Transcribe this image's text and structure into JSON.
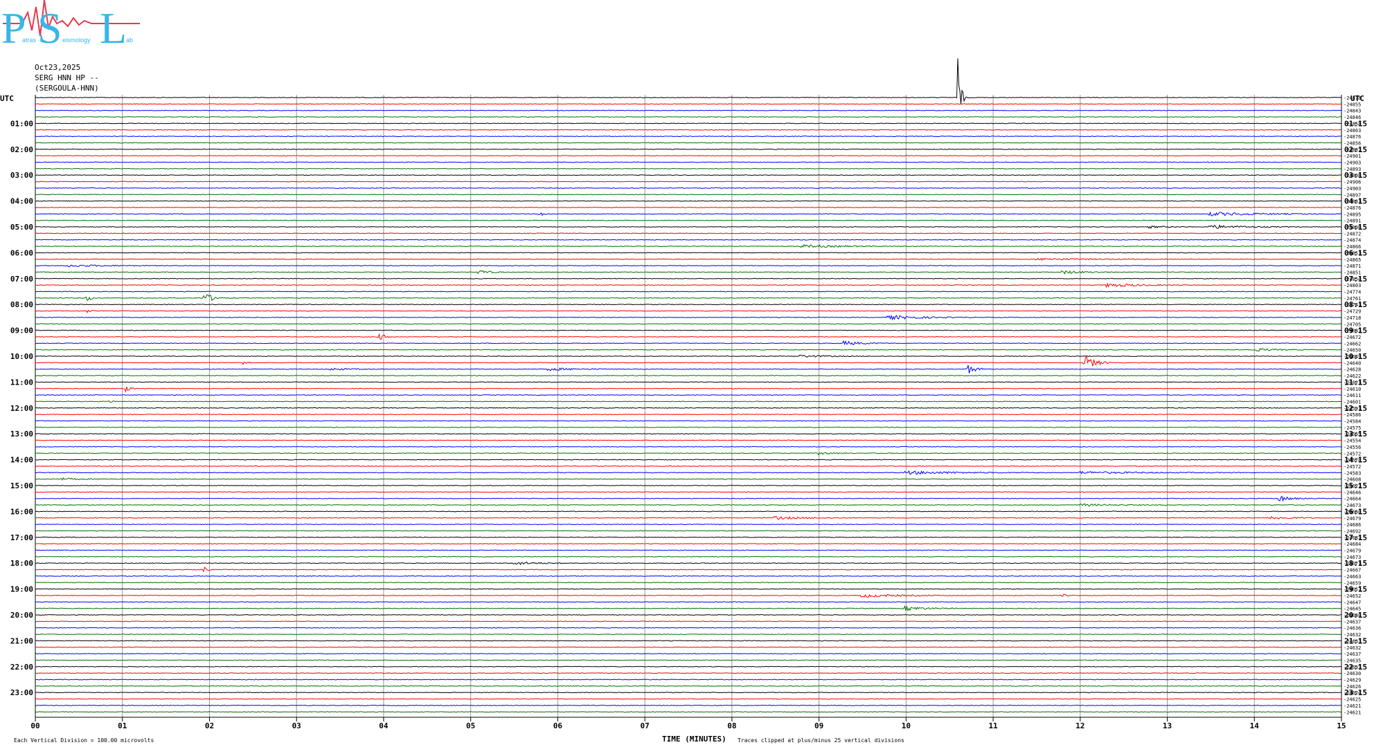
{
  "logo": {
    "text": "PSL",
    "subtext_left": "atras",
    "subtext_mid": "eismology",
    "subtext_right": "ab",
    "color_main": "#38b6e8",
    "color_accent": "#e8384f"
  },
  "header": {
    "date": "Oct23,2025",
    "station": "SERG HNN HP --",
    "station_long": "(SERGOULA-HNN)"
  },
  "colors": {
    "black": "#000000",
    "red": "#ff0000",
    "blue": "#0000ff",
    "green": "#007000",
    "grid": "#999999"
  },
  "chart_data": {
    "type": "line",
    "title": "",
    "xlabel": "TIME (MINUTES)",
    "ylabel": "",
    "left_axis_label": "UTC",
    "right_axis_label": "UTC",
    "x_ticks": [
      "00",
      "01",
      "02",
      "03",
      "04",
      "05",
      "06",
      "07",
      "08",
      "09",
      "10",
      "11",
      "12",
      "13",
      "14",
      "15"
    ],
    "xlim": [
      0,
      15
    ],
    "left_hour_labels": [
      "01:00",
      "02:00",
      "03:00",
      "04:00",
      "05:00",
      "06:00",
      "07:00",
      "08:00",
      "09:00",
      "10:00",
      "11:00",
      "12:00",
      "13:00",
      "14:00",
      "15:00",
      "16:00",
      "17:00",
      "18:00",
      "19:00",
      "20:00",
      "21:00",
      "22:00",
      "23:00"
    ],
    "right_hour_labels": [
      "01:15",
      "02:15",
      "03:15",
      "04:15",
      "05:15",
      "06:15",
      "07:15",
      "08:15",
      "09:15",
      "10:15",
      "11:15",
      "12:15",
      "13:15",
      "14:15",
      "15:15",
      "16:15",
      "17:15",
      "18:15",
      "19:15",
      "20:15",
      "21:15",
      "22:15",
      "23:15"
    ],
    "trace_color_cycle": [
      "black",
      "red",
      "blue",
      "green"
    ],
    "trace_count": 96,
    "trace_offsets": [
      "-24878",
      "-24855",
      "-24843",
      "-24846",
      "-24858",
      "-24863",
      "-24876",
      "-24856",
      "-24887",
      "-24901",
      "-24903",
      "-24893",
      "-24908",
      "-24906",
      "-24903",
      "-24897",
      "-24881",
      "-24876",
      "-24895",
      "-24891",
      "-24908",
      "-24872",
      "-24874",
      "-24866",
      "-24851",
      "-24865",
      "-24871",
      "-24851",
      "-24854",
      "-24803",
      "-24774",
      "-24761",
      "-24741",
      "-24729",
      "-24718",
      "-24705",
      "-24687",
      "-24672",
      "-24662",
      "-24650",
      "-24649",
      "-24640",
      "-24628",
      "-24622",
      "-24621",
      "-24610",
      "-24611",
      "-24601",
      "-24591",
      "-24586",
      "-24584",
      "-24575",
      "-24565",
      "-24554",
      "-24556",
      "-24572",
      "-24578",
      "-24572",
      "-24583",
      "-24608",
      "-24627",
      "-24646",
      "-24664",
      "-24673",
      "-24680",
      "-24679",
      "-24686",
      "-24692",
      "-24687",
      "-24684",
      "-24679",
      "-24673",
      "-24671",
      "-24667",
      "-24663",
      "-24659",
      "-24657",
      "-24652",
      "-24647",
      "-24645",
      "-24640",
      "-24637",
      "-24636",
      "-24632",
      "-24633",
      "-24632",
      "-24637",
      "-24635",
      "-24633",
      "-24630",
      "-24629",
      "-24626",
      "-24624",
      "-24625",
      "-24621",
      "-24621"
    ],
    "events": [
      {
        "trace": 0,
        "minute": 10.6,
        "amp": 5.0,
        "dur": 0.1
      },
      {
        "trace": 18,
        "minute": 5.8,
        "amp": 0.8,
        "dur": 0.1
      },
      {
        "trace": 18,
        "minute": 13.5,
        "amp": 0.5,
        "dur": 1.5
      },
      {
        "trace": 20,
        "minute": 13.5,
        "amp": 0.5,
        "dur": 1.0
      },
      {
        "trace": 20,
        "minute": 12.8,
        "amp": 0.3,
        "dur": 0.5
      },
      {
        "trace": 23,
        "minute": 8.8,
        "amp": 0.4,
        "dur": 1.2
      },
      {
        "trace": 25,
        "minute": 11.5,
        "amp": 0.25,
        "dur": 1.5
      },
      {
        "trace": 26,
        "minute": 0.4,
        "amp": 0.3,
        "dur": 1.0
      },
      {
        "trace": 27,
        "minute": 5.1,
        "amp": 0.6,
        "dur": 0.3
      },
      {
        "trace": 27,
        "minute": 11.8,
        "amp": 0.4,
        "dur": 0.8
      },
      {
        "trace": 29,
        "minute": 12.3,
        "amp": 0.5,
        "dur": 1.0
      },
      {
        "trace": 31,
        "minute": 1.95,
        "amp": 1.6,
        "dur": 0.2
      },
      {
        "trace": 31,
        "minute": 0.6,
        "amp": 0.8,
        "dur": 0.1
      },
      {
        "trace": 33,
        "minute": 0.6,
        "amp": 0.4,
        "dur": 0.1
      },
      {
        "trace": 34,
        "minute": 9.8,
        "amp": 0.6,
        "dur": 1.0
      },
      {
        "trace": 37,
        "minute": 3.95,
        "amp": 0.9,
        "dur": 0.2
      },
      {
        "trace": 38,
        "minute": 9.3,
        "amp": 0.6,
        "dur": 0.5
      },
      {
        "trace": 39,
        "minute": 14.0,
        "amp": 0.4,
        "dur": 0.6
      },
      {
        "trace": 40,
        "minute": 8.8,
        "amp": 0.3,
        "dur": 0.8
      },
      {
        "trace": 41,
        "minute": 2.4,
        "amp": 0.6,
        "dur": 0.1
      },
      {
        "trace": 41,
        "minute": 12.05,
        "amp": 2.2,
        "dur": 0.3
      },
      {
        "trace": 42,
        "minute": 10.7,
        "amp": 1.6,
        "dur": 0.2
      },
      {
        "trace": 42,
        "minute": 5.9,
        "amp": 0.4,
        "dur": 0.8
      },
      {
        "trace": 42,
        "minute": 3.4,
        "amp": 0.3,
        "dur": 0.5
      },
      {
        "trace": 45,
        "minute": 1.05,
        "amp": 0.8,
        "dur": 0.1
      },
      {
        "trace": 47,
        "minute": 0.85,
        "amp": 0.4,
        "dur": 0.1
      },
      {
        "trace": 55,
        "minute": 9.0,
        "amp": 0.4,
        "dur": 0.4
      },
      {
        "trace": 58,
        "minute": 10.0,
        "amp": 0.5,
        "dur": 1.5
      },
      {
        "trace": 58,
        "minute": 12.0,
        "amp": 0.3,
        "dur": 2.0
      },
      {
        "trace": 59,
        "minute": 0.3,
        "amp": 0.3,
        "dur": 0.5
      },
      {
        "trace": 62,
        "minute": 14.3,
        "amp": 0.8,
        "dur": 0.3
      },
      {
        "trace": 63,
        "minute": 12.0,
        "amp": 0.3,
        "dur": 1.0
      },
      {
        "trace": 65,
        "minute": 8.5,
        "amp": 0.4,
        "dur": 0.8
      },
      {
        "trace": 65,
        "minute": 14.2,
        "amp": 0.4,
        "dur": 0.6
      },
      {
        "trace": 72,
        "minute": 5.5,
        "amp": 0.5,
        "dur": 0.6
      },
      {
        "trace": 73,
        "minute": 1.95,
        "amp": 0.6,
        "dur": 0.1
      },
      {
        "trace": 77,
        "minute": 9.5,
        "amp": 0.5,
        "dur": 1.0
      },
      {
        "trace": 77,
        "minute": 11.8,
        "amp": 0.4,
        "dur": 0.1
      },
      {
        "trace": 79,
        "minute": 10.0,
        "amp": 0.6,
        "dur": 0.6
      }
    ],
    "scale_note": "Each Vertical Division =  100.00 microvolts",
    "clip_note": "Traces clipped at plus/minus 25 vertical divisions",
    "grid": true
  }
}
